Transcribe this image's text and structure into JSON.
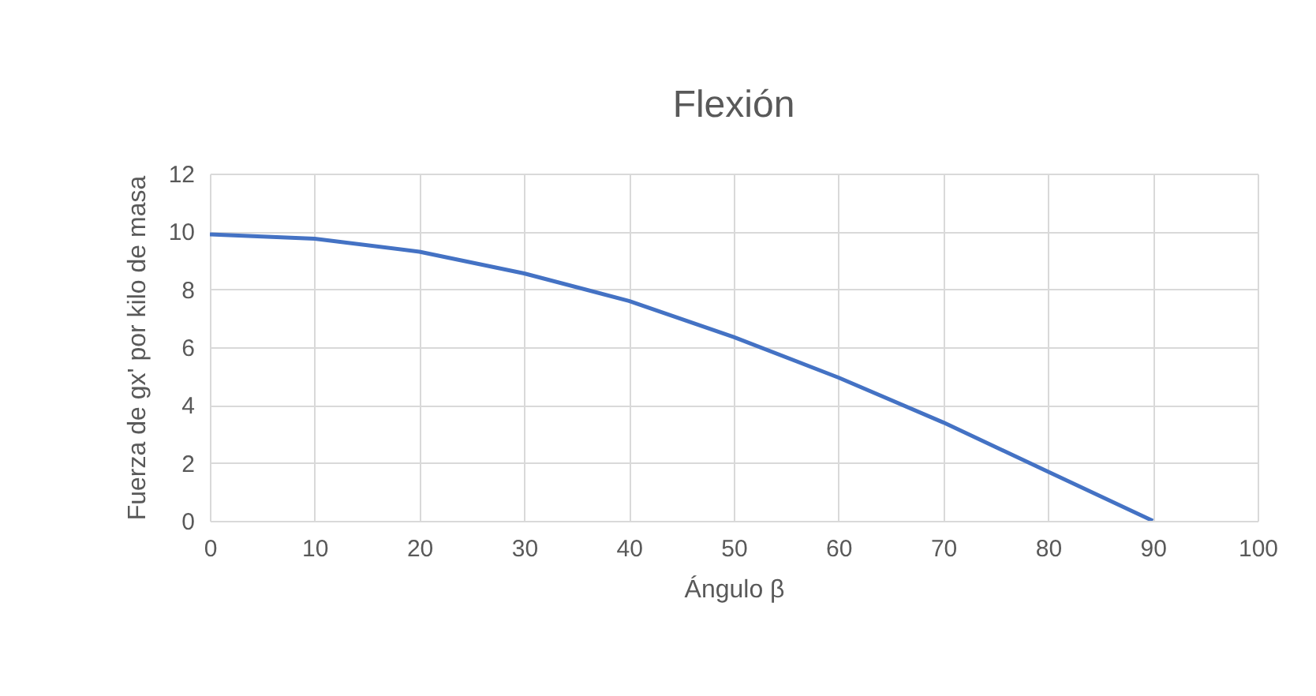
{
  "chart_data": {
    "type": "line",
    "title": "Flexión",
    "xlabel": "Ángulo β",
    "ylabel": "Fuerza de gx' por kilo de masa",
    "x": [
      0,
      10,
      20,
      30,
      40,
      50,
      60,
      70,
      80,
      90
    ],
    "series": [
      {
        "color": "#4472c4",
        "values": [
          9.9,
          9.75,
          9.3,
          8.55,
          7.6,
          6.35,
          4.95,
          3.4,
          1.7,
          0
        ]
      }
    ],
    "xlim": [
      0,
      100
    ],
    "xticks": [
      0,
      10,
      20,
      30,
      40,
      50,
      60,
      70,
      80,
      90,
      100
    ],
    "ylim": [
      0,
      12
    ],
    "yticks": [
      0,
      2,
      4,
      6,
      8,
      10,
      12
    ],
    "grid": true,
    "marker": "none",
    "line_style": "solid"
  }
}
